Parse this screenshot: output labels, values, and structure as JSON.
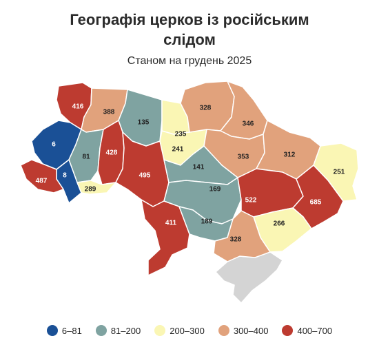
{
  "title_line1": "Географія церков із російським",
  "title_line2": "слідом",
  "subtitle": "Станом на грудень 2025",
  "colors": {
    "c1": "#1a5096",
    "c2": "#7fa3a1",
    "c3": "#faf6b4",
    "c4": "#e1a27c",
    "c5": "#bd3b30",
    "occupied": "#d4d4d4"
  },
  "legend": [
    {
      "label": "6–81",
      "color": "#1a5096"
    },
    {
      "label": "81–200",
      "color": "#7fa3a1"
    },
    {
      "label": "200–300",
      "color": "#faf6b4"
    },
    {
      "label": "300–400",
      "color": "#e1a27c"
    },
    {
      "label": "400–700",
      "color": "#bd3b30"
    }
  ],
  "regions": [
    {
      "id": "lviv",
      "value": 416,
      "class": "c5"
    },
    {
      "id": "volyn",
      "value": 388,
      "class": "c4"
    },
    {
      "id": "zhytomyr",
      "value": 135,
      "class": "c2"
    },
    {
      "id": "kyiv-city",
      "value": 235,
      "class": "c3"
    },
    {
      "id": "kyiv-oblast",
      "value": 241,
      "class": "c3"
    },
    {
      "id": "chernihiv",
      "value": 328,
      "class": "c4"
    },
    {
      "id": "sumy",
      "value": 346,
      "class": "c4"
    },
    {
      "id": "poltava",
      "value": 353,
      "class": "c4"
    },
    {
      "id": "kharkiv",
      "value": 312,
      "class": "c4"
    },
    {
      "id": "luhansk",
      "value": 251,
      "class": "c3"
    },
    {
      "id": "zakarpattia",
      "value": 6,
      "class": "c1"
    },
    {
      "id": "ternopil",
      "value": 81,
      "class": "c2"
    },
    {
      "id": "khmelnytskyi",
      "value": 428,
      "class": "c5"
    },
    {
      "id": "vinnytsia",
      "value": 495,
      "class": "c5"
    },
    {
      "id": "cherkasy",
      "value": 141,
      "class": "c2"
    },
    {
      "id": "kirovohrad",
      "value": 169,
      "class": "c2"
    },
    {
      "id": "dnipro",
      "value": 522,
      "class": "c5"
    },
    {
      "id": "donetsk",
      "value": 685,
      "class": "c5"
    },
    {
      "id": "ivano-frankivsk",
      "value": 8,
      "class": "c1"
    },
    {
      "id": "chernivtsi",
      "value": 289,
      "class": "c3"
    },
    {
      "id": "odesa",
      "value": 411,
      "class": "c5"
    },
    {
      "id": "mykolaiv",
      "value": 189,
      "class": "c2"
    },
    {
      "id": "zaporizhzhia",
      "value": 266,
      "class": "c3"
    },
    {
      "id": "kherson",
      "value": 328,
      "class": "c4"
    },
    {
      "id": "sub-zakarpattia",
      "value": 487,
      "class": "c5"
    }
  ]
}
